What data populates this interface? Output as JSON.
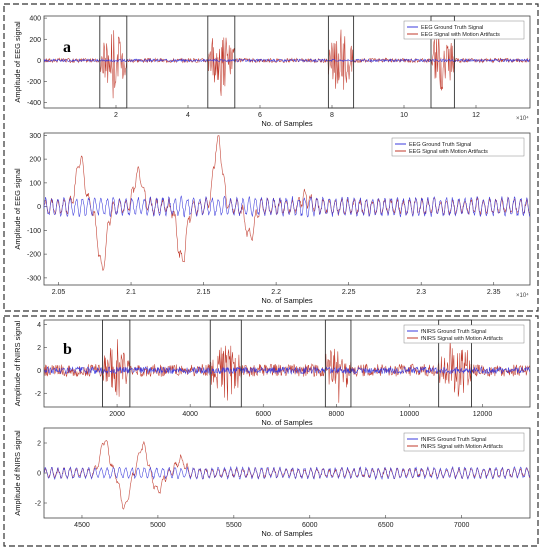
{
  "panels": [
    {
      "label": "a"
    },
    {
      "label": "b"
    }
  ],
  "colors": {
    "ground_truth": "#3b3bdc",
    "artifact": "#c0392b",
    "window_box": "#333333",
    "panel_border": "#333333"
  },
  "chart_data": [
    {
      "id": "eeg-full",
      "type": "line",
      "ylabel": "Amplitude of EEG signal",
      "xlabel": "No. of Samples",
      "x_multiplier": "×10⁴",
      "ylim": [
        -450,
        420
      ],
      "xlim": [
        0,
        13.5
      ],
      "xticks": [
        2,
        4,
        6,
        8,
        10,
        12
      ],
      "yticks": [
        -400,
        -200,
        0,
        200,
        400
      ],
      "legend": [
        "EEG Ground Truth Signal",
        "EEG Signal with Motion Artifacts"
      ],
      "legend_position": "top-right",
      "series": [
        {
          "name": "EEG Ground Truth Signal",
          "role": "ground_truth",
          "amplitude": 12
        },
        {
          "name": "EEG Signal with Motion Artifacts",
          "role": "artifact",
          "amplitude": 20
        }
      ],
      "artifact_windows": [
        [
          1.55,
          2.3
        ],
        [
          4.55,
          5.3
        ],
        [
          7.9,
          8.6
        ],
        [
          10.75,
          11.4
        ]
      ],
      "artifact_amplitude": 350
    },
    {
      "id": "eeg-zoom",
      "type": "line",
      "ylabel": "Amplitude of EEG signal",
      "xlabel": "No. of Samples",
      "x_multiplier": "×10⁴",
      "ylim": [
        -330,
        310
      ],
      "xlim": [
        2.04,
        2.375
      ],
      "xticks": [
        2.05,
        2.1,
        2.15,
        2.2,
        2.25,
        2.3,
        2.35
      ],
      "yticks": [
        -300,
        -200,
        -100,
        0,
        100,
        200,
        300
      ],
      "legend": [
        "EEG Ground Truth Signal",
        "EEG Signal with Motion Artifacts"
      ],
      "legend_position": "top-right",
      "series": [
        {
          "name": "EEG Ground Truth Signal",
          "role": "ground_truth"
        },
        {
          "name": "EEG Signal with Motion Artifacts",
          "role": "artifact"
        }
      ],
      "artifact_peaks": [
        [
          2.065,
          200
        ],
        [
          2.08,
          -260
        ],
        [
          2.105,
          140
        ],
        [
          2.135,
          -230
        ],
        [
          2.16,
          280
        ],
        [
          2.182,
          -130
        ],
        [
          2.22,
          40
        ]
      ]
    },
    {
      "id": "fnirs-full",
      "type": "line",
      "ylabel": "Amplitude of fNIRS signal",
      "xlabel": "No. of Samples",
      "ylim": [
        -3.2,
        4.4
      ],
      "xlim": [
        0,
        13300
      ],
      "xticks": [
        2000,
        4000,
        6000,
        8000,
        10000,
        12000
      ],
      "yticks": [
        -2,
        0,
        2,
        4
      ],
      "legend": [
        "fNIRS Ground Truth Signal",
        "fNIRS Signal with Motion Artifacts"
      ],
      "legend_position": "top-right",
      "series": [
        {
          "name": "fNIRS Ground Truth Signal",
          "role": "ground_truth",
          "amplitude": 0.3
        },
        {
          "name": "fNIRS Signal with Motion Artifacts",
          "role": "artifact",
          "amplitude": 0.55
        }
      ],
      "artifact_windows": [
        [
          1600,
          2350
        ],
        [
          4550,
          5400
        ],
        [
          7700,
          8400
        ],
        [
          10800,
          11700
        ]
      ],
      "artifact_amplitude": 2.6
    },
    {
      "id": "fnirs-zoom",
      "type": "line",
      "ylabel": "Amplitude of fNIRS signal",
      "xlabel": "No. of Samples",
      "ylim": [
        -3.0,
        3.0
      ],
      "xlim": [
        4250,
        7450
      ],
      "xticks": [
        4500,
        5000,
        5500,
        6000,
        6500,
        7000
      ],
      "yticks": [
        -2,
        0,
        2
      ],
      "legend": [
        "fNIRS Ground Truth Signal",
        "fNIRS Signal with Motion Artifacts"
      ],
      "legend_position": "top-right",
      "series": [
        {
          "name": "fNIRS Ground Truth Signal",
          "role": "ground_truth"
        },
        {
          "name": "fNIRS Signal with Motion Artifacts",
          "role": "artifact"
        }
      ],
      "artifact_peaks": [
        [
          4650,
          2.2
        ],
        [
          4780,
          -2.3
        ],
        [
          4900,
          1.8
        ],
        [
          5000,
          -1.2
        ],
        [
          5150,
          0.9
        ]
      ]
    }
  ]
}
